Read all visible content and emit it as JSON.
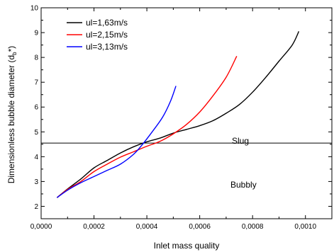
{
  "chart_data": {
    "type": "line",
    "xlabel": "Inlet mass quality",
    "ylabel": "Dimensionless bubble diameter (d",
    "ylabel_sub": "b",
    "ylabel_tail": "*)",
    "xlim": [
      0.0,
      0.0011
    ],
    "ylim": [
      1.5,
      10
    ],
    "x_ticks": [
      0.0,
      0.0002,
      0.0004,
      0.0006,
      0.0008,
      0.001
    ],
    "x_tick_labels": [
      "0,0000",
      "0,0002",
      "0,0004",
      "0,0006",
      "0,0008",
      "0,0010"
    ],
    "y_ticks": [
      2,
      3,
      4,
      5,
      6,
      7,
      8,
      9,
      10
    ],
    "y_tick_labels": [
      "2",
      "3",
      "4",
      "5",
      "6",
      "7",
      "8",
      "9",
      "10"
    ],
    "legend_position": "top-left",
    "threshold": {
      "y": 4.55,
      "upper_label": "Slug",
      "lower_label": "Bubbly"
    },
    "series": [
      {
        "name": "ul=1,63m/s",
        "color": "#000000",
        "points": [
          [
            6e-05,
            2.35
          ],
          [
            0.0001,
            2.7
          ],
          [
            0.00015,
            3.1
          ],
          [
            0.0002,
            3.55
          ],
          [
            0.00025,
            3.85
          ],
          [
            0.0003,
            4.15
          ],
          [
            0.00035,
            4.4
          ],
          [
            0.0004,
            4.6
          ],
          [
            0.00045,
            4.75
          ],
          [
            0.0005,
            4.95
          ],
          [
            0.00055,
            5.1
          ],
          [
            0.0006,
            5.25
          ],
          [
            0.00065,
            5.45
          ],
          [
            0.0007,
            5.75
          ],
          [
            0.00075,
            6.1
          ],
          [
            0.0008,
            6.6
          ],
          [
            0.00085,
            7.2
          ],
          [
            0.0009,
            7.85
          ],
          [
            0.00095,
            8.5
          ],
          [
            0.000975,
            9.05
          ]
        ]
      },
      {
        "name": "ul=2,15m/s",
        "color": "#ff0000",
        "points": [
          [
            6e-05,
            2.35
          ],
          [
            0.0001,
            2.68
          ],
          [
            0.00015,
            3.0
          ],
          [
            0.0002,
            3.4
          ],
          [
            0.00025,
            3.7
          ],
          [
            0.0003,
            3.98
          ],
          [
            0.00035,
            4.2
          ],
          [
            0.0004,
            4.42
          ],
          [
            0.00045,
            4.62
          ],
          [
            0.0005,
            4.92
          ],
          [
            0.00055,
            5.3
          ],
          [
            0.0006,
            5.8
          ],
          [
            0.00065,
            6.45
          ],
          [
            0.0007,
            7.2
          ],
          [
            0.00074,
            8.05
          ]
        ]
      },
      {
        "name": "ul=3,13m/s",
        "color": "#0000ff",
        "points": [
          [
            6e-05,
            2.35
          ],
          [
            0.0001,
            2.65
          ],
          [
            0.00015,
            2.95
          ],
          [
            0.0002,
            3.2
          ],
          [
            0.00025,
            3.45
          ],
          [
            0.0003,
            3.7
          ],
          [
            0.00035,
            4.1
          ],
          [
            0.00038,
            4.45
          ],
          [
            0.00042,
            5.0
          ],
          [
            0.00046,
            5.6
          ],
          [
            0.00049,
            6.25
          ],
          [
            0.00051,
            6.85
          ]
        ]
      }
    ]
  }
}
